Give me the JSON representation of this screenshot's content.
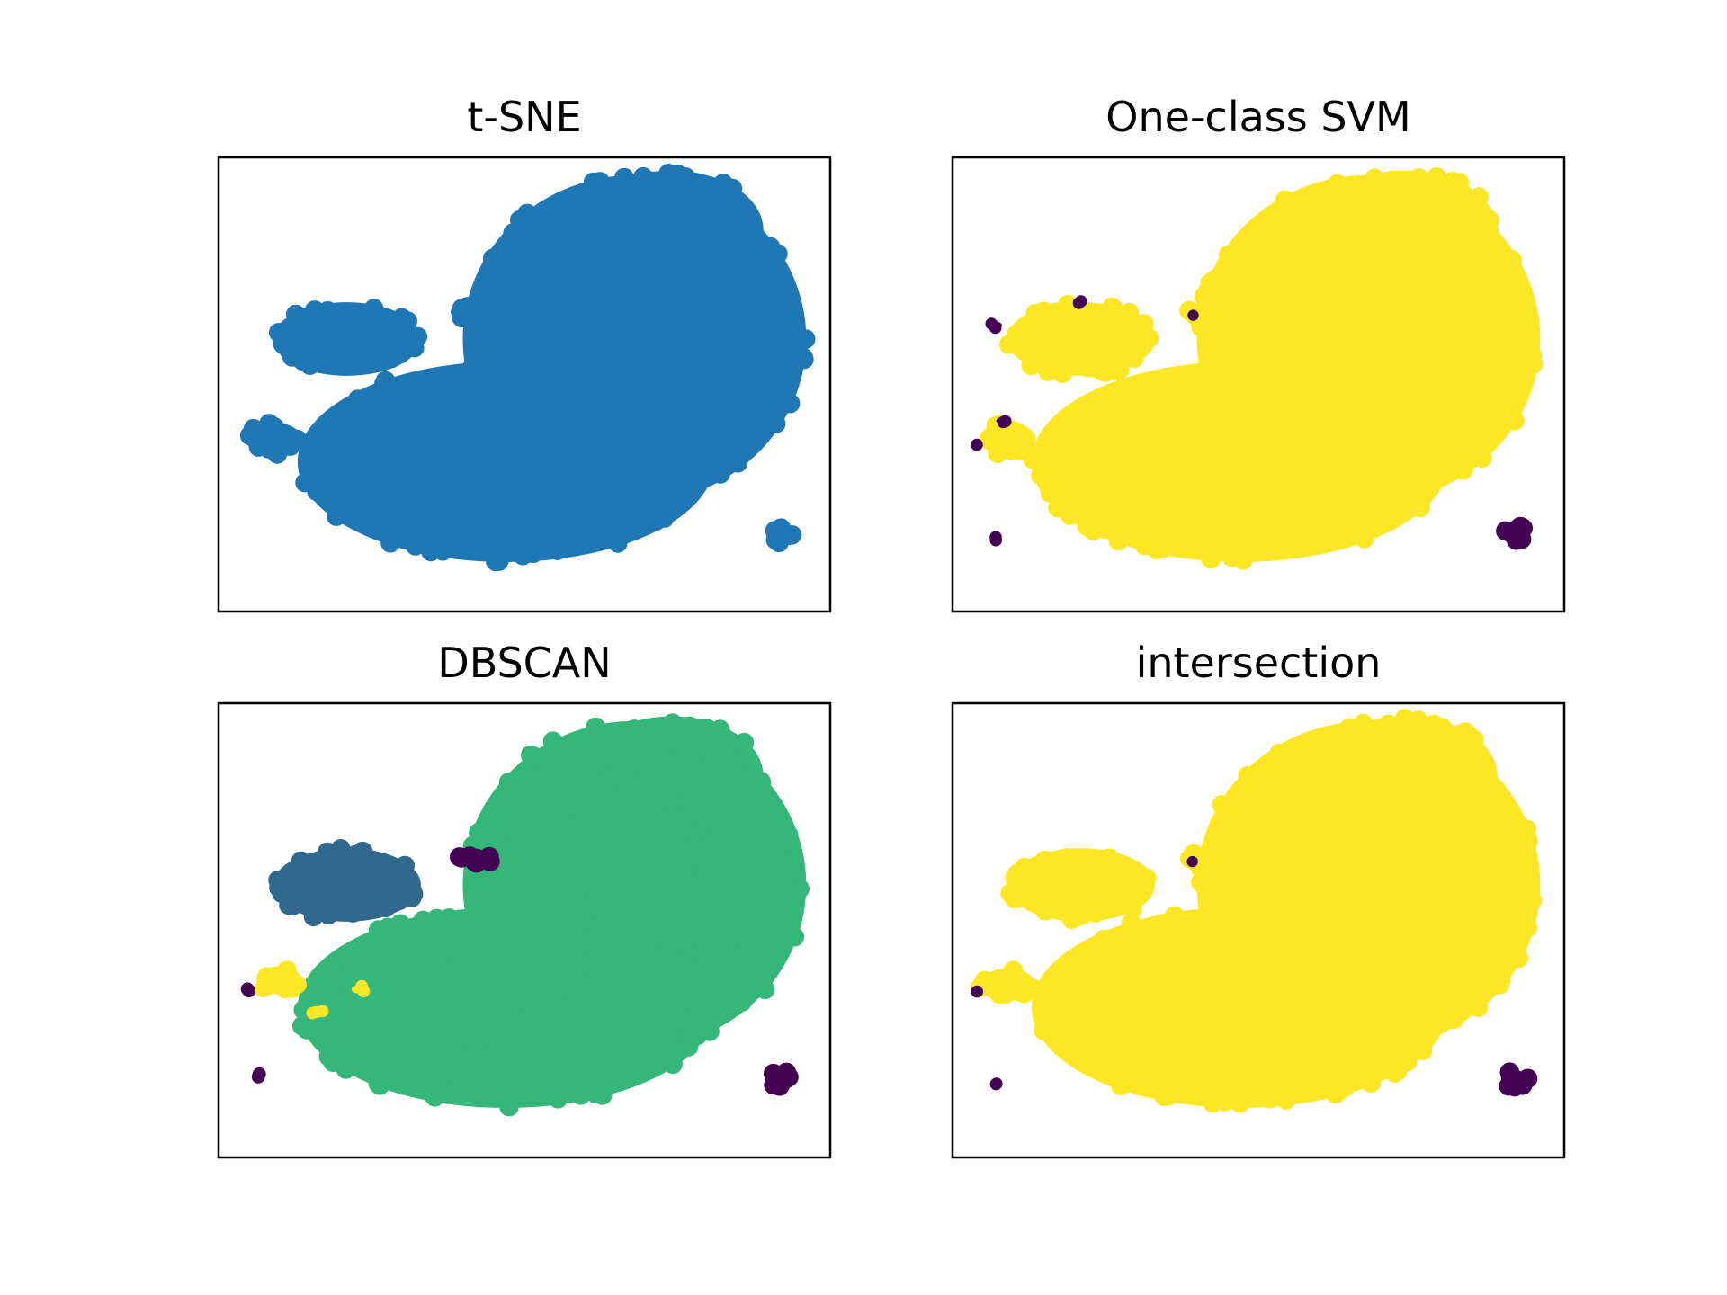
{
  "figure": {
    "background": "#ffffff",
    "marker": "filled-circle",
    "axes_ticks_visible": false,
    "colors": {
      "tsne": "#1f77b4",
      "outlier": "#440154",
      "inlier": "#fde725",
      "dbscan_main": "#35b779",
      "dbscan_cluster_1": "#31688e"
    }
  },
  "chart_data": [
    {
      "type": "scatter",
      "title": "t-SNE",
      "xlim": [
        0,
        100
      ],
      "ylim": [
        0,
        100
      ],
      "grid": false,
      "legend": "none",
      "series": [
        {
          "color": "#1f77b4",
          "blobs": [
            {
              "cx": 68,
              "cy": 60,
              "rx": 28,
              "ry": 36,
              "r": 3.6,
              "n": 240
            },
            {
              "cx": 47,
              "cy": 33,
              "rx": 34,
              "ry": 22,
              "r": 3.6,
              "n": 240
            },
            {
              "cx": 74,
              "cy": 84,
              "rx": 15,
              "ry": 13,
              "r": 3.6,
              "n": 110
            },
            {
              "cx": 21,
              "cy": 60,
              "rx": 12,
              "ry": 8,
              "r": 3.6,
              "n": 70
            },
            {
              "cx": 9,
              "cy": 38,
              "rx": 4.5,
              "ry": 3.5,
              "r": 3.6,
              "n": 18
            },
            {
              "cx": 42,
              "cy": 66,
              "rx": 4,
              "ry": 2,
              "r": 3.6,
              "n": 12
            },
            {
              "cx": 92,
              "cy": 17,
              "rx": 2.2,
              "ry": 2,
              "r": 3.6,
              "n": 8
            }
          ]
        }
      ]
    },
    {
      "type": "scatter",
      "title": "One-class SVM",
      "xlim": [
        0,
        100
      ],
      "ylim": [
        0,
        100
      ],
      "grid": false,
      "legend": "none",
      "series": [
        {
          "color": "#fde725",
          "blobs": [
            {
              "cx": 68,
              "cy": 60,
              "rx": 28,
              "ry": 36,
              "r": 3.6,
              "n": 240
            },
            {
              "cx": 47,
              "cy": 33,
              "rx": 34,
              "ry": 22,
              "r": 3.6,
              "n": 240
            },
            {
              "cx": 74,
              "cy": 84,
              "rx": 15,
              "ry": 13,
              "r": 3.6,
              "n": 110
            },
            {
              "cx": 21,
              "cy": 60,
              "rx": 12,
              "ry": 8,
              "r": 3.6,
              "n": 70
            },
            {
              "cx": 9,
              "cy": 38,
              "rx": 4.5,
              "ry": 3.5,
              "r": 3.6,
              "n": 18
            },
            {
              "cx": 42,
              "cy": 66,
              "rx": 4,
              "ry": 2,
              "r": 3.6,
              "n": 12
            }
          ]
        },
        {
          "color": "#440154",
          "blobs": [
            {
              "cx": 92,
              "cy": 17,
              "rx": 2.2,
              "ry": 2,
              "r": 3.6,
              "n": 8
            },
            {
              "cx": 7,
              "cy": 16,
              "rx": 0.5,
              "ry": 0.5,
              "r": 2.2,
              "n": 2
            },
            {
              "cx": 7,
              "cy": 63,
              "rx": 1,
              "ry": 0.8,
              "r": 2.2,
              "n": 2
            },
            {
              "cx": 21,
              "cy": 68,
              "rx": 1,
              "ry": 0.5,
              "r": 2.2,
              "n": 2
            },
            {
              "cx": 4,
              "cy": 37,
              "rx": 0.5,
              "ry": 0.5,
              "r": 2.2,
              "n": 1
            },
            {
              "cx": 8,
              "cy": 42,
              "rx": 0.8,
              "ry": 0.5,
              "r": 2.2,
              "n": 2
            },
            {
              "cx": 39.5,
              "cy": 65.5,
              "rx": 0.5,
              "ry": 0.5,
              "r": 2.0,
              "n": 1
            }
          ]
        }
      ]
    },
    {
      "type": "scatter",
      "title": "DBSCAN",
      "xlim": [
        0,
        100
      ],
      "ylim": [
        0,
        100
      ],
      "grid": false,
      "legend": "none",
      "series": [
        {
          "color": "#35b779",
          "blobs": [
            {
              "cx": 68,
              "cy": 60,
              "rx": 28,
              "ry": 36,
              "r": 3.6,
              "n": 240
            },
            {
              "cx": 47,
              "cy": 33,
              "rx": 34,
              "ry": 22,
              "r": 3.6,
              "n": 240
            },
            {
              "cx": 74,
              "cy": 84,
              "rx": 15,
              "ry": 13,
              "r": 3.6,
              "n": 110
            }
          ]
        },
        {
          "color": "#31688e",
          "blobs": [
            {
              "cx": 21,
              "cy": 60,
              "rx": 12,
              "ry": 8,
              "r": 3.6,
              "n": 70
            }
          ]
        },
        {
          "color": "#fde725",
          "blobs": [
            {
              "cx": 10,
              "cy": 39,
              "rx": 3.5,
              "ry": 3,
              "r": 3.2,
              "n": 14
            },
            {
              "cx": 23,
              "cy": 37,
              "rx": 1.2,
              "ry": 0.8,
              "r": 2.2,
              "n": 3
            },
            {
              "cx": 16,
              "cy": 32,
              "rx": 1.2,
              "ry": 1.2,
              "r": 2.2,
              "n": 2
            }
          ]
        },
        {
          "color": "#440154",
          "blobs": [
            {
              "cx": 92,
              "cy": 17,
              "rx": 2.2,
              "ry": 2,
              "r": 3.6,
              "n": 8
            },
            {
              "cx": 42,
              "cy": 66,
              "rx": 3,
              "ry": 1.5,
              "r": 3.6,
              "n": 10
            },
            {
              "cx": 5,
              "cy": 37,
              "rx": 0.6,
              "ry": 0.6,
              "r": 2.4,
              "n": 2
            },
            {
              "cx": 6.5,
              "cy": 18,
              "rx": 0.6,
              "ry": 0.6,
              "r": 2.4,
              "n": 2
            }
          ]
        }
      ]
    },
    {
      "type": "scatter",
      "title": "intersection",
      "xlim": [
        0,
        100
      ],
      "ylim": [
        0,
        100
      ],
      "grid": false,
      "legend": "none",
      "series": [
        {
          "color": "#fde725",
          "blobs": [
            {
              "cx": 68,
              "cy": 60,
              "rx": 28,
              "ry": 36,
              "r": 3.6,
              "n": 240
            },
            {
              "cx": 47,
              "cy": 33,
              "rx": 34,
              "ry": 22,
              "r": 3.6,
              "n": 240
            },
            {
              "cx": 74,
              "cy": 84,
              "rx": 15,
              "ry": 13,
              "r": 3.6,
              "n": 110
            },
            {
              "cx": 21,
              "cy": 60,
              "rx": 12,
              "ry": 8,
              "r": 3.6,
              "n": 70
            },
            {
              "cx": 9,
              "cy": 38,
              "rx": 4.5,
              "ry": 3.5,
              "r": 3.6,
              "n": 18
            },
            {
              "cx": 42,
              "cy": 66,
              "rx": 4,
              "ry": 2,
              "r": 3.6,
              "n": 12
            }
          ]
        },
        {
          "color": "#440154",
          "blobs": [
            {
              "cx": 92,
              "cy": 17,
              "rx": 2.2,
              "ry": 2,
              "r": 3.6,
              "n": 8
            },
            {
              "cx": 7,
              "cy": 16,
              "rx": 0.5,
              "ry": 0.5,
              "r": 2.2,
              "n": 2
            },
            {
              "cx": 4,
              "cy": 37,
              "rx": 0.5,
              "ry": 0.5,
              "r": 2.2,
              "n": 1
            },
            {
              "cx": 39.5,
              "cy": 65.5,
              "rx": 0.5,
              "ry": 0.5,
              "r": 2.0,
              "n": 1
            }
          ]
        }
      ]
    }
  ]
}
